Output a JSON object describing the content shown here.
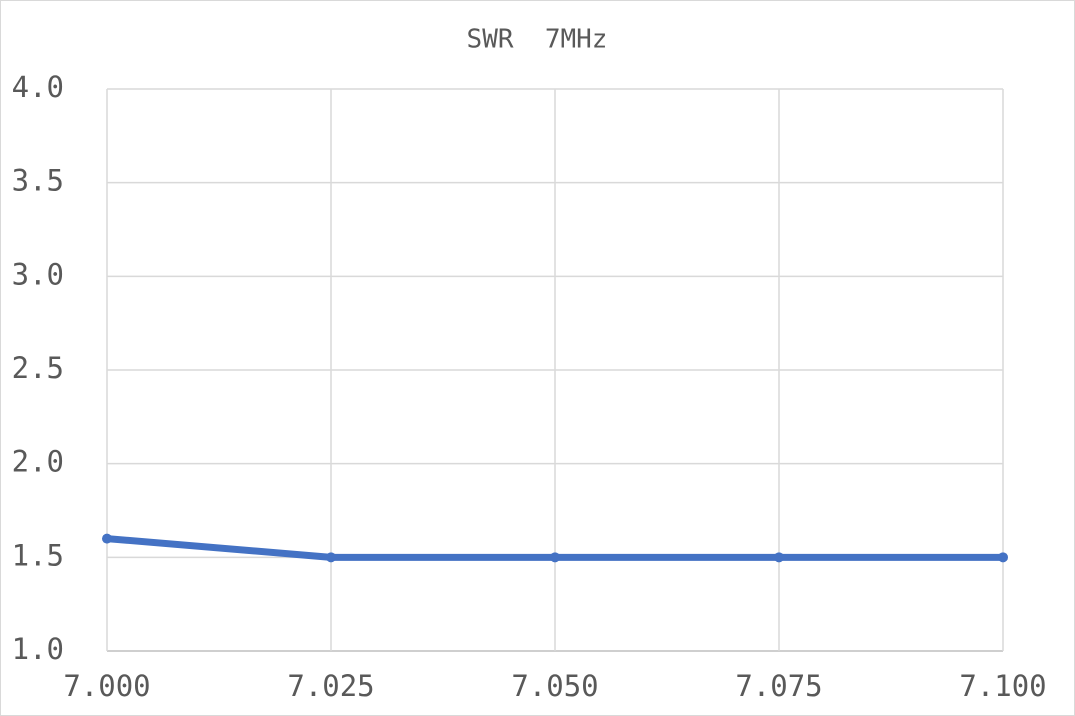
{
  "chart_data": {
    "type": "line",
    "title": "SWR  7MHz",
    "x": [
      7.0,
      7.025,
      7.05,
      7.075,
      7.1
    ],
    "values": [
      1.6,
      1.5,
      1.5,
      1.5,
      1.5
    ],
    "color": "#4472c4",
    "xlim": [
      7.0,
      7.1
    ],
    "xticks": [
      {
        "value": 7.0,
        "label": "7.000"
      },
      7.025,
      {
        "value": 7.05,
        "label": "7.050"
      },
      7.075,
      {
        "value": 7.1,
        "label": "7.100"
      }
    ],
    "ylim": [
      1.0,
      4.0
    ],
    "yticks": [
      {
        "value": 1.0,
        "label": "1.0"
      },
      {
        "value": 1.5,
        "label": "1.5"
      },
      {
        "value": 2.0,
        "label": "2.0"
      },
      {
        "value": 2.5,
        "label": "2.5"
      },
      {
        "value": 3.0,
        "label": "3.0"
      },
      {
        "value": 3.5,
        "label": "3.5"
      },
      {
        "value": 4.0,
        "label": "4.0"
      }
    ],
    "grid": true
  }
}
